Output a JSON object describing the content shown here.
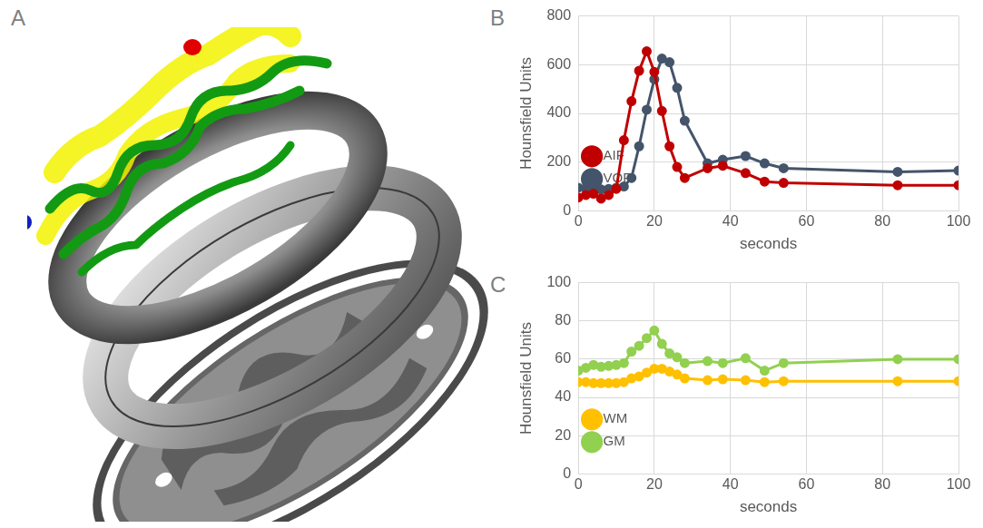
{
  "panel_a": {
    "label": "A"
  },
  "chart_data": [
    {
      "label": "B",
      "type": "line",
      "x_label": "seconds",
      "y_label": "Hounsfield Units",
      "x": [
        0,
        2,
        4,
        6,
        8,
        10,
        12,
        14,
        16,
        18,
        20,
        22,
        24,
        26,
        28,
        34,
        38,
        44,
        49,
        54,
        84,
        100
      ],
      "series": [
        {
          "name": "AIF",
          "color": "#c00000",
          "values": [
            55,
            65,
            70,
            50,
            65,
            90,
            290,
            450,
            575,
            655,
            570,
            410,
            265,
            180,
            135,
            175,
            185,
            155,
            120,
            115,
            105,
            105
          ]
        },
        {
          "name": "VOF",
          "color": "#44546a",
          "values": [
            95,
            93,
            90,
            88,
            90,
            95,
            100,
            135,
            265,
            415,
            540,
            625,
            610,
            505,
            370,
            195,
            210,
            225,
            195,
            175,
            160,
            165
          ]
        }
      ],
      "xlim": [
        0,
        100
      ],
      "xticks": [
        0,
        20,
        40,
        60,
        80,
        100
      ],
      "ylim": [
        0,
        800
      ],
      "yticks": [
        0,
        200,
        400,
        600,
        800
      ],
      "grid": true,
      "legend": "upper right",
      "marker": "circle",
      "line_style": "solid"
    },
    {
      "label": "C",
      "type": "line",
      "x_label": "seconds",
      "y_label": "Hounsfield Units",
      "x": [
        0,
        2,
        4,
        6,
        8,
        10,
        12,
        14,
        16,
        18,
        20,
        22,
        24,
        26,
        28,
        34,
        38,
        44,
        49,
        54,
        84,
        100
      ],
      "series": [
        {
          "name": "WM",
          "color": "#ffc000",
          "values": [
            48,
            48,
            47.5,
            47.5,
            47.5,
            47.5,
            48,
            50,
            51,
            53,
            55,
            55,
            53.5,
            52,
            50,
            49,
            49.5,
            49,
            48,
            48.5,
            48.5,
            48.5
          ]
        },
        {
          "name": "GM",
          "color": "#92d050",
          "values": [
            54,
            55.5,
            57,
            56,
            56.5,
            57,
            58,
            64,
            67,
            71,
            75,
            68,
            63,
            61,
            58,
            59,
            58,
            60.5,
            54,
            58,
            60,
            60
          ]
        }
      ],
      "xlim": [
        0,
        100
      ],
      "xticks": [
        0,
        20,
        40,
        60,
        80,
        100
      ],
      "ylim": [
        0,
        100
      ],
      "yticks": [
        0,
        20,
        40,
        60,
        80,
        100
      ],
      "grid": true,
      "legend": "upper right",
      "marker": "circle",
      "line_style": "solid"
    }
  ]
}
